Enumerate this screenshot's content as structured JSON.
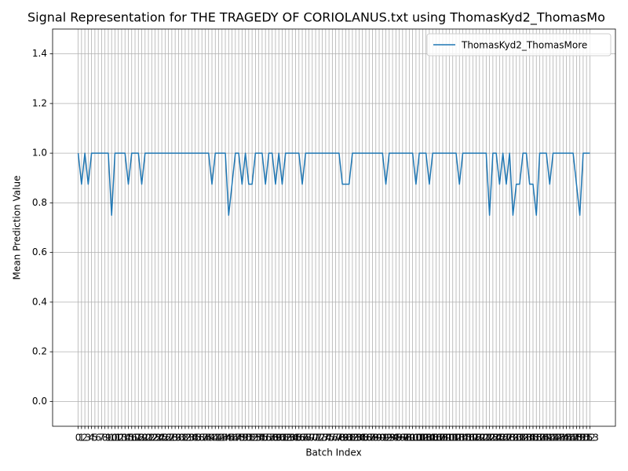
{
  "chart_data": {
    "type": "line",
    "title": "Signal Representation for THE TRAGEDY OF CORIOLANUS.txt using ThomasKyd2_ThomasMo",
    "x_label": "Batch Index",
    "y_label": "Mean Prediction Value",
    "x": [
      0,
      1,
      2,
      3,
      4,
      5,
      6,
      7,
      8,
      9,
      10,
      11,
      12,
      13,
      14,
      15,
      16,
      17,
      18,
      19,
      20,
      21,
      22,
      23,
      24,
      25,
      26,
      27,
      28,
      29,
      30,
      31,
      32,
      33,
      34,
      35,
      36,
      37,
      38,
      39,
      40,
      41,
      42,
      43,
      44,
      45,
      46,
      47,
      48,
      49,
      50,
      51,
      52,
      53,
      54,
      55,
      56,
      57,
      58,
      59,
      60,
      61,
      62,
      63,
      64,
      65,
      66,
      67,
      68,
      69,
      70,
      71,
      72,
      73,
      74,
      75,
      76,
      77,
      78,
      79,
      80,
      81,
      82,
      83,
      84,
      85,
      86,
      87,
      88,
      89,
      90,
      91,
      92,
      93,
      94,
      95,
      96,
      97,
      98,
      99,
      100,
      101,
      102,
      103,
      104,
      105,
      106,
      107,
      108,
      109,
      110,
      111,
      112,
      113,
      114,
      115,
      116,
      117,
      118,
      119,
      120,
      121,
      122,
      123,
      124,
      125,
      126,
      127,
      128,
      129,
      130,
      131,
      132,
      133,
      134,
      135,
      136,
      137,
      138,
      139,
      140,
      141,
      142,
      143,
      144,
      145,
      146,
      147,
      148,
      149,
      150,
      151,
      152,
      153
    ],
    "series": [
      {
        "name": "ThomasKyd2_ThomasMore",
        "color": "#1f77b4",
        "values": [
          1,
          0.875,
          1,
          0.875,
          1,
          1,
          1,
          1,
          1,
          1,
          0.75,
          1,
          1,
          1,
          1,
          0.875,
          1,
          1,
          1,
          0.875,
          1,
          1,
          1,
          1,
          1,
          1,
          1,
          1,
          1,
          1,
          1,
          1,
          1,
          1,
          1,
          1,
          1,
          1,
          1,
          1,
          0.875,
          1,
          1,
          1,
          1,
          0.75,
          0.875,
          1,
          1,
          0.875,
          1,
          0.875,
          0.875,
          1,
          1,
          1,
          0.875,
          1,
          1,
          0.875,
          1,
          0.875,
          1,
          1,
          1,
          1,
          1,
          0.875,
          1,
          1,
          1,
          1,
          1,
          1,
          1,
          1,
          1,
          1,
          1,
          0.875,
          0.875,
          0.875,
          1,
          1,
          1,
          1,
          1,
          1,
          1,
          1,
          1,
          1,
          0.875,
          1,
          1,
          1,
          1,
          1,
          1,
          1,
          1,
          0.875,
          1,
          1,
          1,
          0.875,
          1,
          1,
          1,
          1,
          1,
          1,
          1,
          1,
          0.875,
          1,
          1,
          1,
          1,
          1,
          1,
          1,
          1,
          0.75,
          1,
          1,
          0.875,
          1,
          0.875,
          1,
          0.75,
          0.875,
          0.875,
          1,
          1,
          0.875,
          0.875,
          0.75,
          1,
          1,
          1,
          0.875,
          1,
          1,
          1,
          1,
          1,
          1,
          1,
          0.875,
          0.75,
          1,
          1,
          1
        ]
      }
    ],
    "xlim": [
      -7.65,
      160.65
    ],
    "xticks": [
      0,
      1,
      2,
      3,
      4,
      5,
      6,
      7,
      8,
      9,
      10,
      11,
      12,
      13,
      14,
      15,
      16,
      17,
      18,
      19,
      20,
      21,
      22,
      23,
      24,
      25,
      26,
      27,
      28,
      29,
      30,
      31,
      32,
      33,
      34,
      35,
      36,
      37,
      38,
      39,
      40,
      41,
      42,
      43,
      44,
      45,
      46,
      47,
      48,
      49,
      50,
      51,
      52,
      53,
      54,
      55,
      56,
      57,
      58,
      59,
      60,
      61,
      62,
      63,
      64,
      65,
      66,
      67,
      68,
      69,
      70,
      71,
      72,
      73,
      74,
      75,
      76,
      77,
      78,
      79,
      80,
      81,
      82,
      83,
      84,
      85,
      86,
      87,
      88,
      89,
      90,
      91,
      92,
      93,
      94,
      95,
      96,
      97,
      98,
      99,
      100,
      101,
      102,
      103,
      104,
      105,
      106,
      107,
      108,
      109,
      110,
      111,
      112,
      113,
      114,
      115,
      116,
      117,
      118,
      119,
      120,
      121,
      122,
      123,
      124,
      125,
      126,
      127,
      128,
      129,
      130,
      131,
      132,
      133,
      134,
      135,
      136,
      137,
      138,
      139,
      140,
      141,
      142,
      143,
      144,
      145,
      146,
      147,
      148,
      149,
      150,
      151,
      152,
      153
    ],
    "ylim": [
      -0.1,
      1.5
    ],
    "yticks": [
      {
        "value": 0,
        "label": "0.0"
      },
      0.2,
      0.4,
      0.6,
      0.8,
      {
        "value": 1,
        "label": "1.0"
      },
      1.2,
      1.4
    ],
    "grid": true,
    "legend": "upper right"
  }
}
